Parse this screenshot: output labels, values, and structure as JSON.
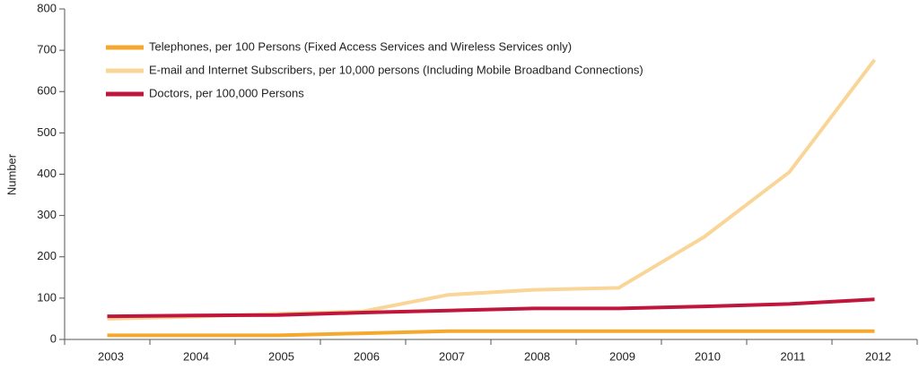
{
  "chart_data": {
    "type": "line",
    "y_label": "Number",
    "categories": [
      "2003",
      "2004",
      "2005",
      "2006",
      "2007",
      "2008",
      "2009",
      "2010",
      "2011",
      "2012"
    ],
    "series": [
      {
        "name": "Telephones, per 100 Persons (Fixed Access Services and Wireless Services only)",
        "color": "#f4a82e",
        "values": [
          10,
          10,
          10,
          15,
          20,
          20,
          20,
          20,
          20,
          20
        ]
      },
      {
        "name": "E-mail and Internet Subscribers, per 10,000 persons (Including Mobile Broadband Connections)",
        "color": "#f9d598",
        "values": [
          50,
          55,
          62,
          68,
          108,
          120,
          125,
          248,
          405,
          677
        ]
      },
      {
        "name": "Doctors, per 100,000 Persons",
        "color": "#c0163c",
        "values": [
          56,
          58,
          59,
          65,
          70,
          75,
          75,
          80,
          86,
          97
        ]
      }
    ],
    "ylim": [
      0,
      800
    ],
    "yticks": [
      0,
      100,
      200,
      300,
      400,
      500,
      600,
      700,
      800
    ],
    "legend": "upper-left"
  }
}
